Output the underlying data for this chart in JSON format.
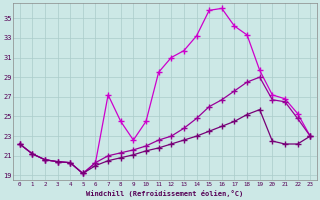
{
  "xlabel": "Windchill (Refroidissement éolien,°C)",
  "bg_color": "#cce8e6",
  "grid_color": "#aaccca",
  "line_color1": "#cc00cc",
  "line_color2": "#990099",
  "line_color3": "#770077",
  "xlim": [
    -0.5,
    23.5
  ],
  "ylim": [
    18.5,
    36.5
  ],
  "yticks": [
    19,
    21,
    23,
    25,
    27,
    29,
    31,
    33,
    35
  ],
  "xticks": [
    0,
    1,
    2,
    3,
    4,
    5,
    6,
    7,
    8,
    9,
    10,
    11,
    12,
    13,
    14,
    15,
    16,
    17,
    18,
    19,
    20,
    21,
    22,
    23
  ],
  "curve1_x": [
    0,
    1,
    2,
    3,
    4,
    5,
    6,
    7,
    8,
    9,
    10,
    11,
    12,
    13,
    14,
    15,
    16,
    17,
    18,
    19,
    20,
    21,
    22,
    23
  ],
  "curve1_y": [
    22.2,
    21.2,
    20.6,
    20.4,
    20.3,
    19.2,
    20.3,
    27.2,
    24.5,
    22.6,
    24.5,
    29.5,
    31.0,
    31.7,
    33.2,
    35.8,
    36.0,
    34.2,
    33.3,
    29.7,
    27.2,
    26.8,
    25.3,
    23.0
  ],
  "curve2_x": [
    0,
    1,
    2,
    3,
    4,
    5,
    6,
    7,
    8,
    9,
    10,
    11,
    12,
    13,
    14,
    15,
    16,
    17,
    18,
    19,
    20,
    21,
    22,
    23
  ],
  "curve2_y": [
    22.2,
    21.2,
    20.6,
    20.4,
    20.3,
    19.2,
    20.3,
    21.0,
    21.3,
    21.6,
    22.0,
    22.6,
    23.0,
    23.8,
    24.8,
    26.0,
    26.7,
    27.6,
    28.5,
    29.0,
    26.7,
    26.5,
    24.8,
    23.0
  ],
  "curve3_x": [
    0,
    1,
    2,
    3,
    4,
    5,
    6,
    7,
    8,
    9,
    10,
    11,
    12,
    13,
    14,
    15,
    16,
    17,
    18,
    19,
    20,
    21,
    22,
    23
  ],
  "curve3_y": [
    22.2,
    21.2,
    20.6,
    20.4,
    20.3,
    19.2,
    20.0,
    20.5,
    20.8,
    21.1,
    21.5,
    21.8,
    22.2,
    22.6,
    23.0,
    23.5,
    24.0,
    24.5,
    25.2,
    25.7,
    22.5,
    22.2,
    22.2,
    23.0
  ]
}
